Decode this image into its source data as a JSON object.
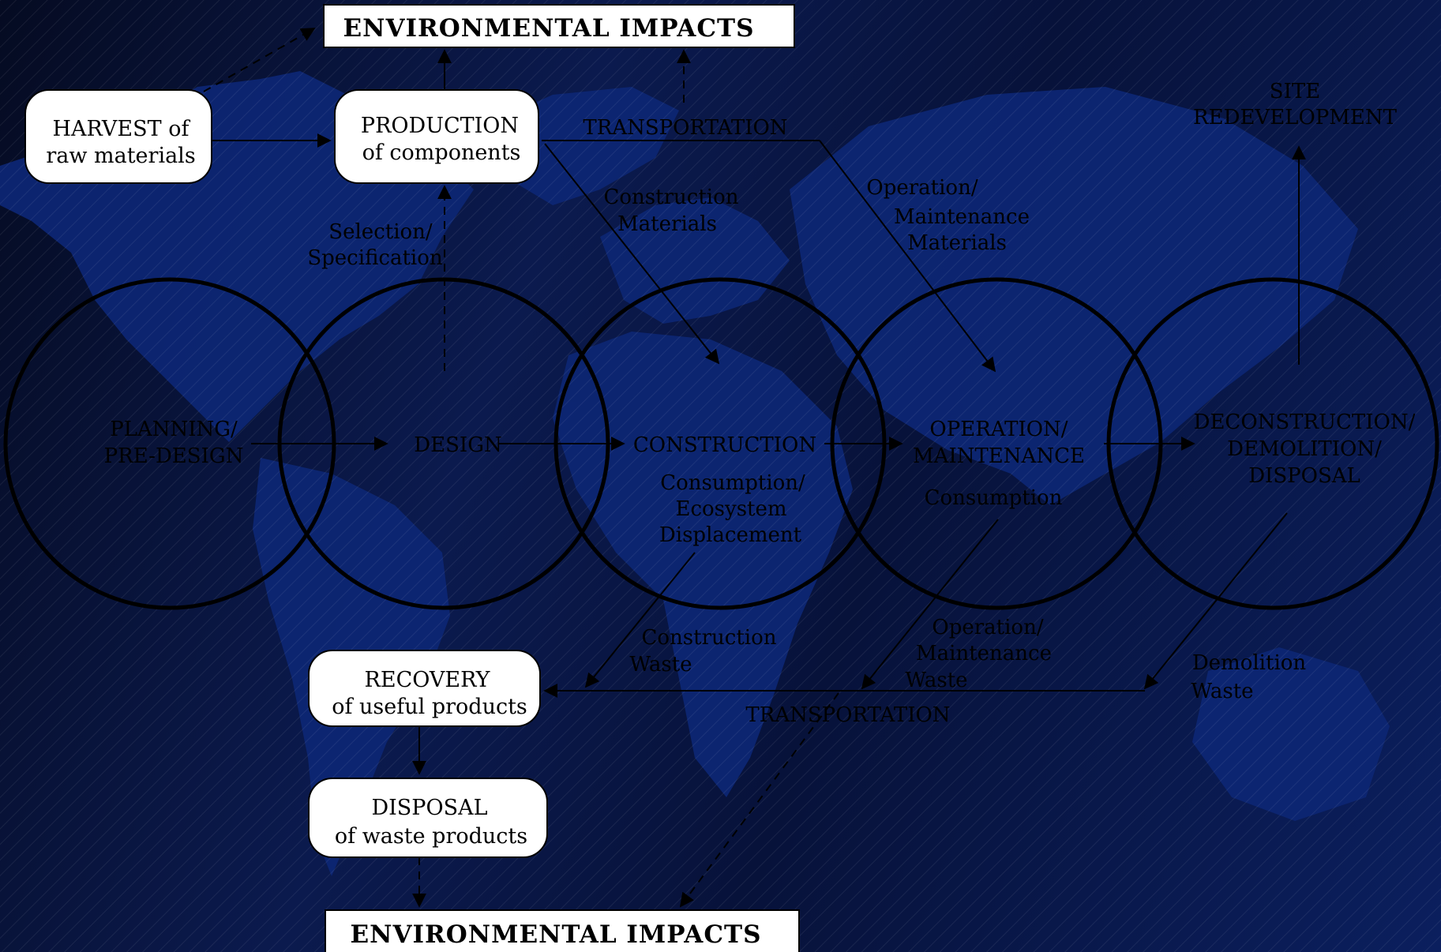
{
  "colors": {
    "background_dark": "#050b22",
    "background_blue": "#0b1f5e",
    "landmass": "#0d2673",
    "ink": "#000000",
    "box_fill": "#ffffff"
  },
  "banners": {
    "top": "ENVIRONMENTAL IMPACTS",
    "bottom": "ENVIRONMENTAL IMPACTS"
  },
  "boxes": {
    "harvest": {
      "line1": "HARVEST of",
      "line2": "raw materials"
    },
    "production": {
      "line1": "PRODUCTION",
      "line2": "of components"
    },
    "recovery": {
      "line1": "RECOVERY",
      "line2": "of useful products"
    },
    "disposal": {
      "line1": "DISPOSAL",
      "line2": "of waste products"
    }
  },
  "stages": {
    "planning": {
      "line1": "PLANNING/",
      "line2": "PRE-DESIGN"
    },
    "design": {
      "line1": "DESIGN"
    },
    "construction": {
      "line1": "CONSTRUCTION"
    },
    "operation": {
      "line1": "OPERATION/",
      "line2": "MAINTENANCE"
    },
    "deconstruction": {
      "line1": "DECONSTRUCTION/",
      "line2": "DEMOLITION/",
      "line3": "DISPOSAL"
    }
  },
  "labels": {
    "transportation_top": "TRANSPORTATION",
    "transportation_bottom": "TRANSPORTATION",
    "site_redevelopment": {
      "line1": "SITE",
      "line2": "REDEVELOPMENT"
    },
    "selection": {
      "line1": "Selection/",
      "line2": "Specification"
    },
    "construction_materials": {
      "line1": "Construction",
      "line2": "Materials"
    },
    "operation_materials": {
      "line1": "Operation/",
      "line2": "Maintenance",
      "line3": "Materials"
    },
    "construction_consumption": {
      "line1": "Consumption/",
      "line2": "Ecosystem",
      "line3": "Displacement"
    },
    "operation_consumption": "Consumption",
    "construction_waste": {
      "line1": "Construction",
      "line2": "Waste"
    },
    "operation_waste": {
      "line1": "Operation/",
      "line2": "Maintenance",
      "line3": "Waste"
    },
    "demolition_waste": {
      "line1": "Demolition",
      "line2": "Waste"
    }
  }
}
